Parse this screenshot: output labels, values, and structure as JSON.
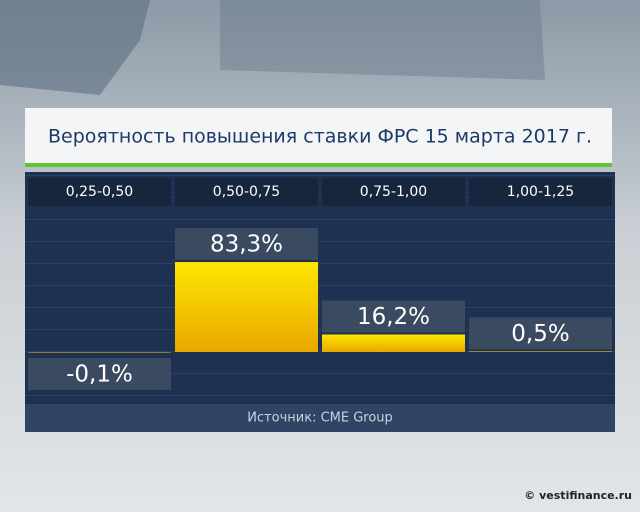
{
  "chart_data": {
    "type": "bar",
    "title": "Вероятность повышения ставки ФРС 15 марта 2017 г.",
    "categories": [
      "0,25-0,50",
      "0,50-0,75",
      "0,75-1,00",
      "1,00-1,25"
    ],
    "values": [
      -0.1,
      83.3,
      16.2,
      0.5
    ],
    "value_labels": [
      "-0,1%",
      "83,3%",
      "16,2%",
      "0,5%"
    ],
    "color": "#f2c200",
    "source": "Источник: CME Group",
    "watermark": "© vestifinance.ru"
  }
}
